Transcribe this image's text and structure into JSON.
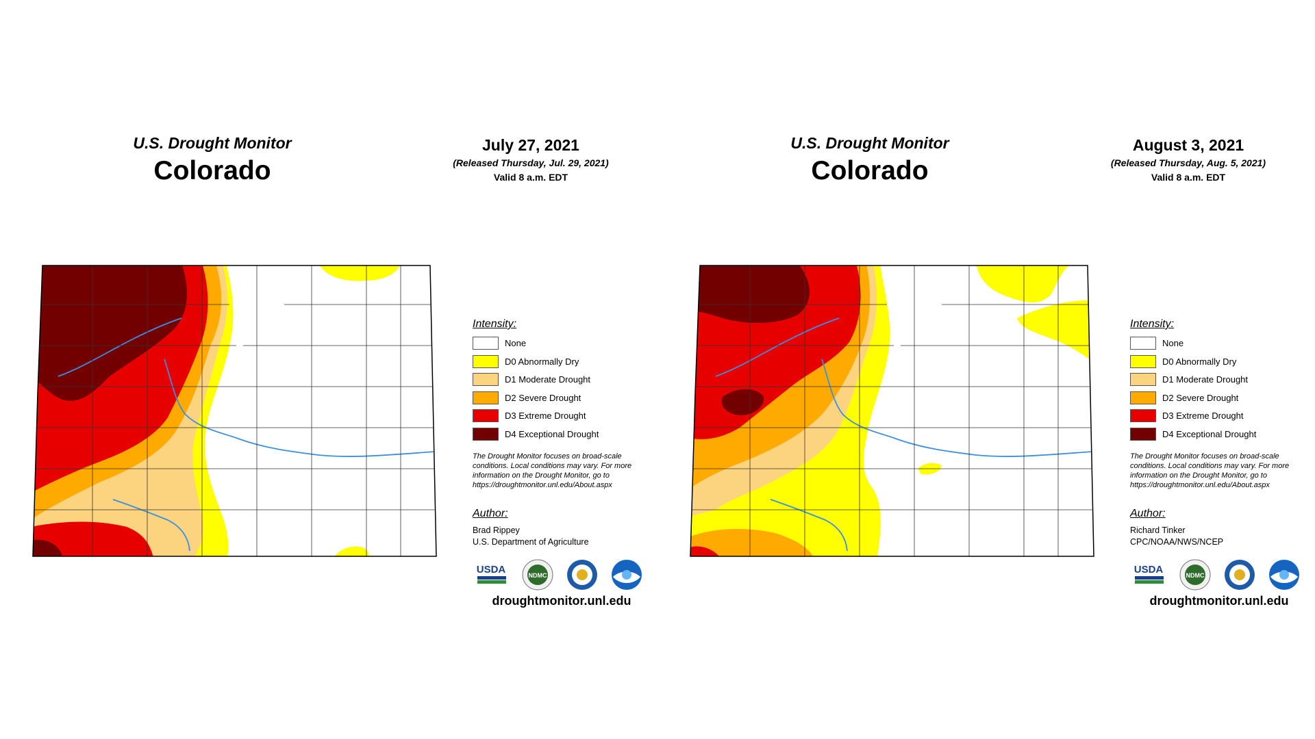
{
  "panels": [
    {
      "title_sub": "U.S. Drought Monitor",
      "title_main": "Colorado",
      "date": "July 27, 2021",
      "released": "(Released Thursday, Jul. 29, 2021)",
      "valid": "Valid 8 a.m. EDT",
      "legend_title": "Intensity:",
      "disclaimer": "The Drought Monitor focuses on broad-scale conditions. Local conditions may vary. For more information on the Drought Monitor, go to https://droughtmonitor.unl.edu/About.aspx",
      "author_title": "Author:",
      "author_name": "Brad Rippey",
      "author_org": "U.S. Department of Agriculture",
      "logo_usda": "USDA",
      "logo_ndmc": "NDMC",
      "website": "droughtmonitor.unl.edu"
    },
    {
      "title_sub": "U.S. Drought Monitor",
      "title_main": "Colorado",
      "date": "August 3, 2021",
      "released": "(Released Thursday, Aug. 5, 2021)",
      "valid": "Valid 8 a.m. EDT",
      "legend_title": "Intensity:",
      "disclaimer": "The Drought Monitor focuses on broad-scale conditions. Local conditions may vary. For more information on the Drought Monitor, go to https://droughtmonitor.unl.edu/About.aspx",
      "author_title": "Author:",
      "author_name": "Richard Tinker",
      "author_org": "CPC/NOAA/NWS/NCEP",
      "logo_usda": "USDA",
      "logo_ndmc": "NDMC",
      "website": "droughtmonitor.unl.edu"
    }
  ],
  "legend": [
    {
      "label": "None",
      "color": "#ffffff"
    },
    {
      "label": "D0 Abnormally Dry",
      "color": "#ffff00"
    },
    {
      "label": "D1 Moderate Drought",
      "color": "#fcd37f"
    },
    {
      "label": "D2 Severe Drought",
      "color": "#ffaa00"
    },
    {
      "label": "D3 Extreme Drought",
      "color": "#e60000"
    },
    {
      "label": "D4 Exceptional Drought",
      "color": "#730000"
    }
  ]
}
